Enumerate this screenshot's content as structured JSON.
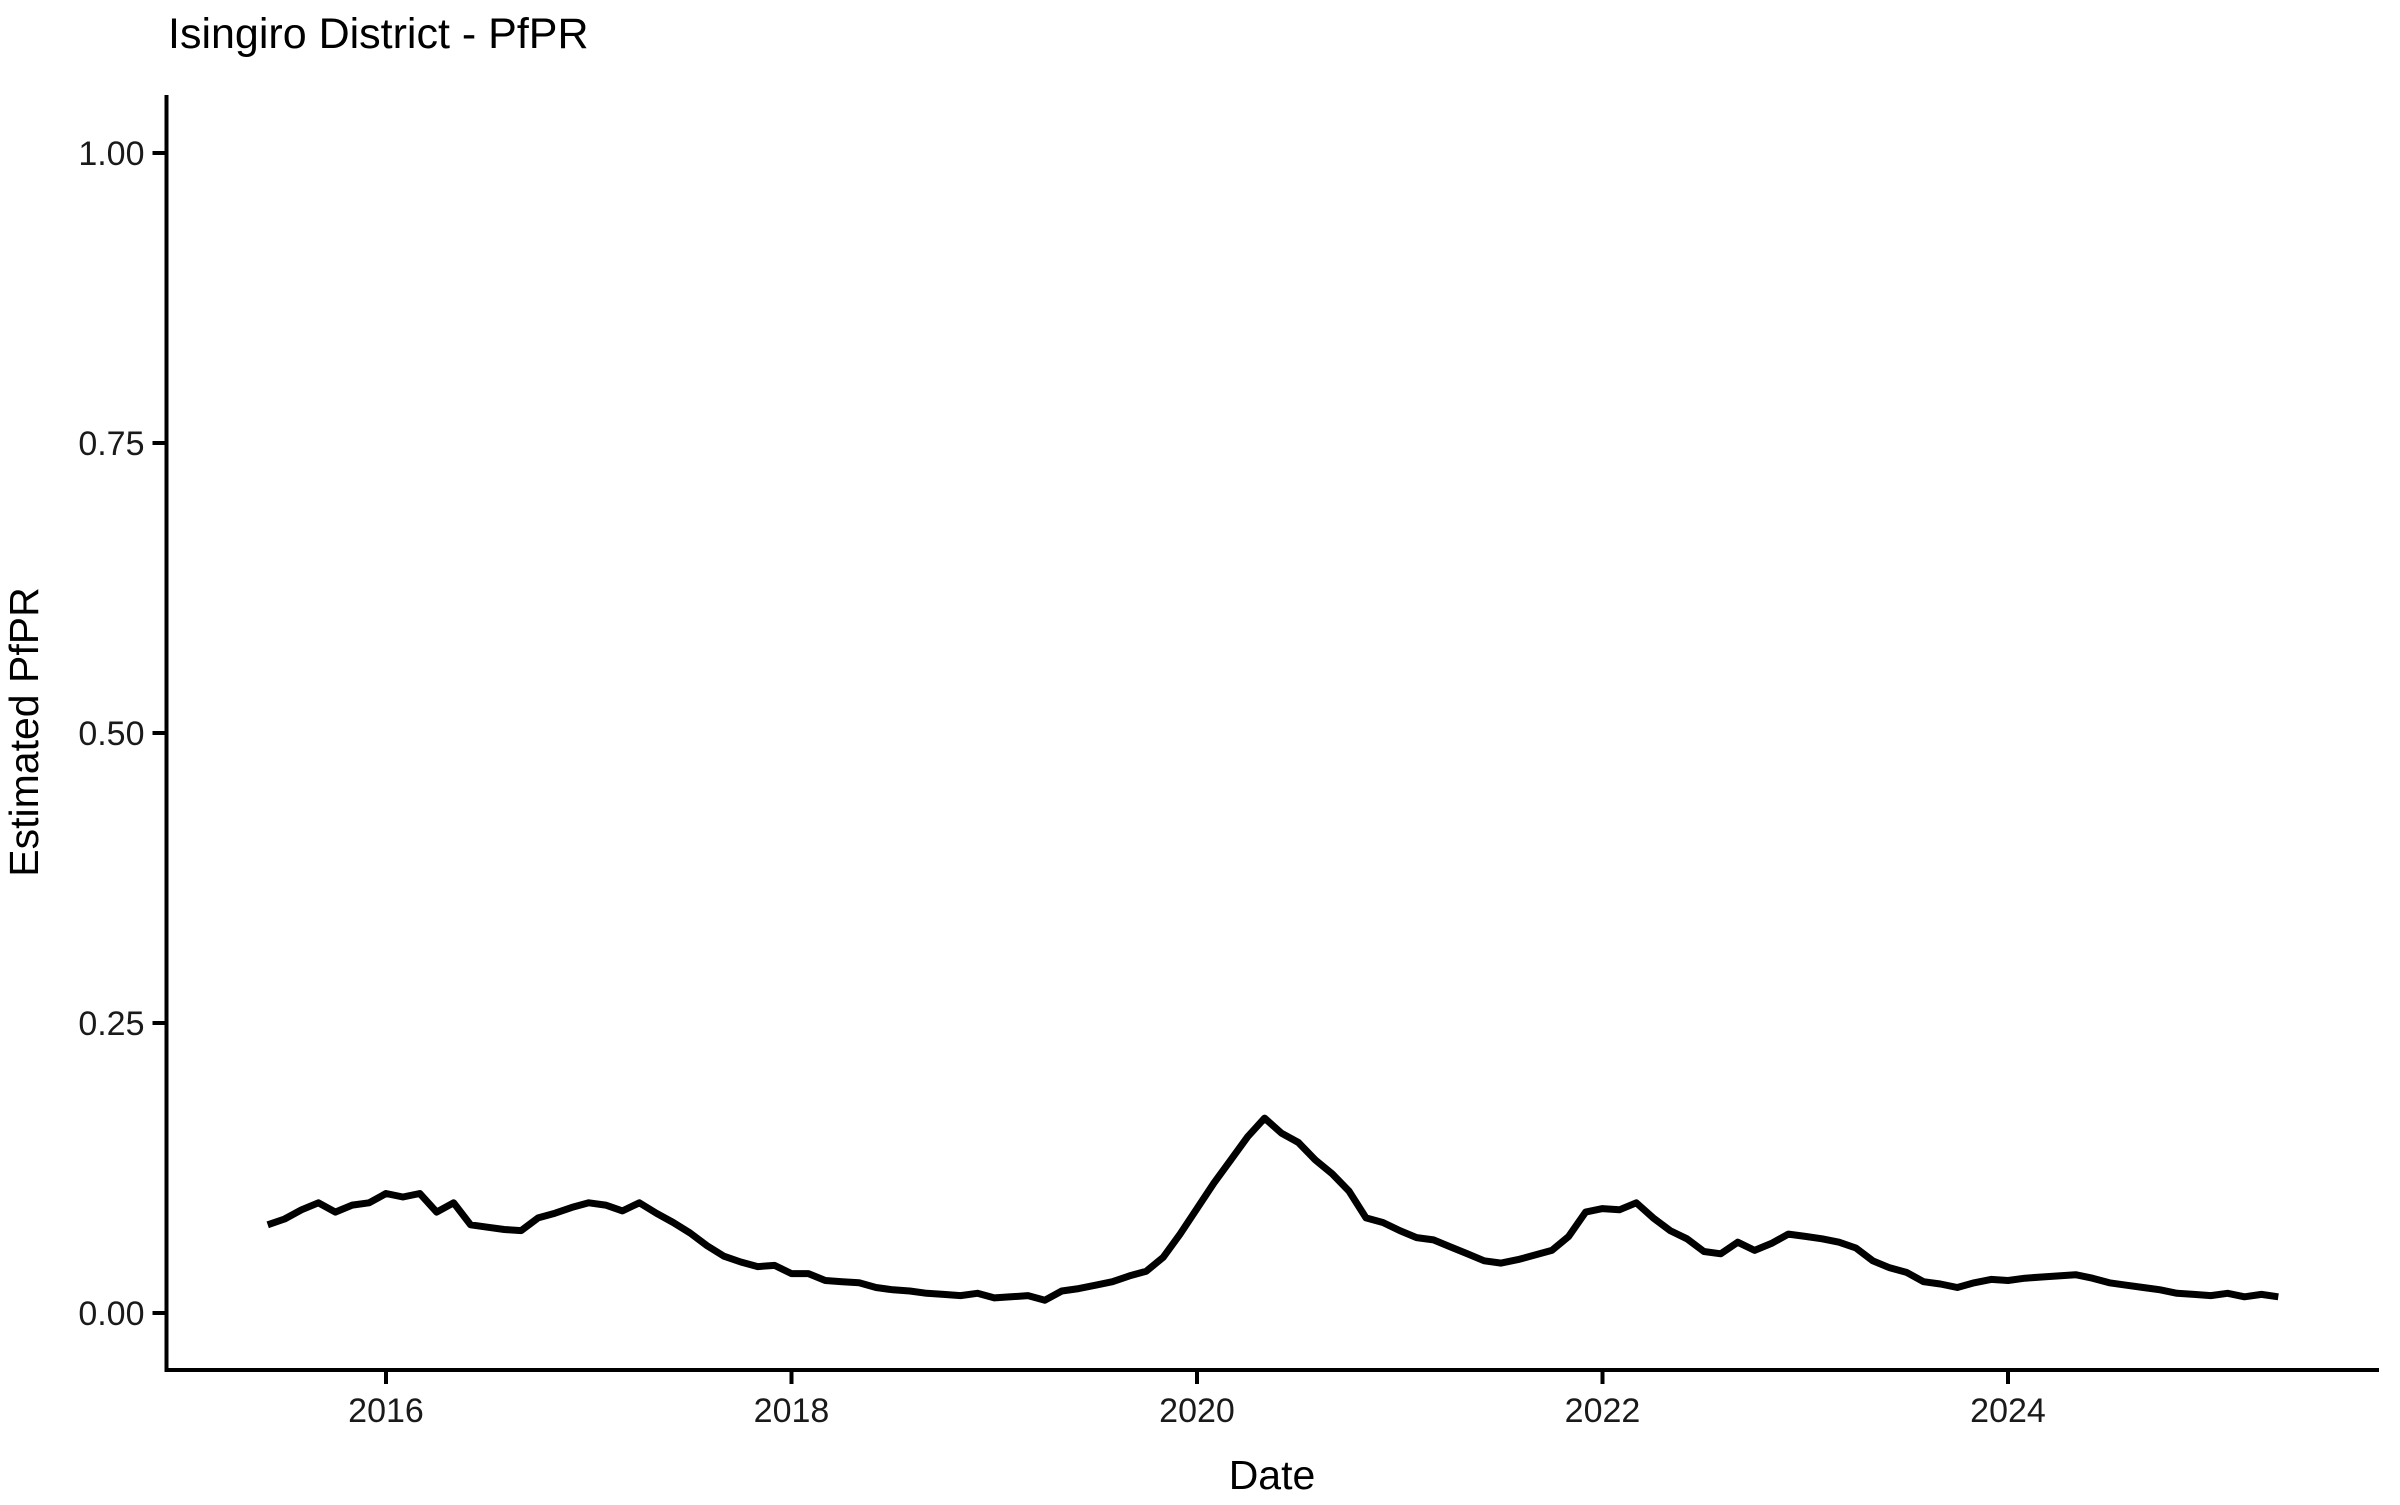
{
  "figure": {
    "background": "#ffffff",
    "line_color": "#000000",
    "axis_color": "#000000"
  },
  "chart_data": {
    "type": "line",
    "title": "Isingiro District - PfPR",
    "xlabel": "Date",
    "ylabel": "Estimated PfPR",
    "ylim": [
      0.0,
      1.0
    ],
    "grid": "off",
    "legend": "none",
    "x_axis_tick_years": [
      2016,
      2018,
      2020,
      2022,
      2024
    ],
    "x_axis_tick_labels": [
      "2016",
      "2018",
      "2020",
      "2022",
      "2024"
    ],
    "y_axis_tick_values": [
      0.0,
      0.25,
      0.5,
      0.75,
      1.0
    ],
    "y_axis_tick_labels": [
      "0.00",
      "0.25",
      "0.50",
      "0.75",
      "1.00"
    ],
    "series": [
      {
        "name": "Estimated PfPR",
        "dates": [
          "2015-06",
          "2015-07",
          "2015-08",
          "2015-09",
          "2015-10",
          "2015-11",
          "2015-12",
          "2016-01",
          "2016-02",
          "2016-03",
          "2016-04",
          "2016-05",
          "2016-06",
          "2016-07",
          "2016-08",
          "2016-09",
          "2016-10",
          "2016-11",
          "2016-12",
          "2017-01",
          "2017-02",
          "2017-03",
          "2017-04",
          "2017-05",
          "2017-06",
          "2017-07",
          "2017-08",
          "2017-09",
          "2017-10",
          "2017-11",
          "2017-12",
          "2018-01",
          "2018-02",
          "2018-03",
          "2018-04",
          "2018-05",
          "2018-06",
          "2018-07",
          "2018-08",
          "2018-09",
          "2018-10",
          "2018-11",
          "2018-12",
          "2019-01",
          "2019-02",
          "2019-03",
          "2019-04",
          "2019-05",
          "2019-06",
          "2019-07",
          "2019-08",
          "2019-09",
          "2019-10",
          "2019-11",
          "2019-12",
          "2020-01",
          "2020-02",
          "2020-03",
          "2020-04",
          "2020-05",
          "2020-06",
          "2020-07",
          "2020-08",
          "2020-09",
          "2020-10",
          "2020-11",
          "2020-12",
          "2021-01",
          "2021-02",
          "2021-03",
          "2021-04",
          "2021-05",
          "2021-06",
          "2021-07",
          "2021-08",
          "2021-09",
          "2021-10",
          "2021-11",
          "2021-12",
          "2022-01",
          "2022-02",
          "2022-03",
          "2022-04",
          "2022-05",
          "2022-06",
          "2022-07",
          "2022-08",
          "2022-09",
          "2022-10",
          "2022-11",
          "2022-12",
          "2023-01",
          "2023-02",
          "2023-03",
          "2023-04",
          "2023-05",
          "2023-06",
          "2023-07",
          "2023-08",
          "2023-09",
          "2023-10",
          "2023-11",
          "2023-12",
          "2024-01",
          "2024-02",
          "2024-03",
          "2024-04",
          "2024-05",
          "2024-06",
          "2024-07",
          "2024-08",
          "2024-09",
          "2024-10",
          "2024-11",
          "2024-12",
          "2025-01",
          "2025-02",
          "2025-03",
          "2025-04",
          "2025-05"
        ],
        "values": [
          0.076,
          0.081,
          0.089,
          0.095,
          0.087,
          0.093,
          0.095,
          0.103,
          0.1,
          0.103,
          0.087,
          0.095,
          0.076,
          0.074,
          0.072,
          0.071,
          0.082,
          0.086,
          0.091,
          0.095,
          0.093,
          0.088,
          0.095,
          0.086,
          0.078,
          0.069,
          0.058,
          0.049,
          0.044,
          0.04,
          0.041,
          0.034,
          0.034,
          0.028,
          0.027,
          0.026,
          0.022,
          0.02,
          0.019,
          0.017,
          0.016,
          0.015,
          0.017,
          0.013,
          0.014,
          0.015,
          0.011,
          0.019,
          0.021,
          0.024,
          0.027,
          0.032,
          0.036,
          0.048,
          0.068,
          0.09,
          0.112,
          0.132,
          0.152,
          0.168,
          0.155,
          0.147,
          0.132,
          0.12,
          0.105,
          0.082,
          0.078,
          0.071,
          0.065,
          0.063,
          0.057,
          0.051,
          0.045,
          0.043,
          0.046,
          0.05,
          0.054,
          0.066,
          0.087,
          0.09,
          0.089,
          0.095,
          0.082,
          0.071,
          0.064,
          0.053,
          0.051,
          0.061,
          0.054,
          0.06,
          0.068,
          0.066,
          0.064,
          0.061,
          0.056,
          0.045,
          0.039,
          0.035,
          0.027,
          0.025,
          0.022,
          0.026,
          0.029,
          0.028,
          0.03,
          0.031,
          0.032,
          0.033,
          0.03,
          0.026,
          0.024,
          0.022,
          0.02,
          0.017,
          0.016,
          0.015,
          0.017,
          0.014,
          0.016,
          0.014
        ]
      }
    ]
  }
}
